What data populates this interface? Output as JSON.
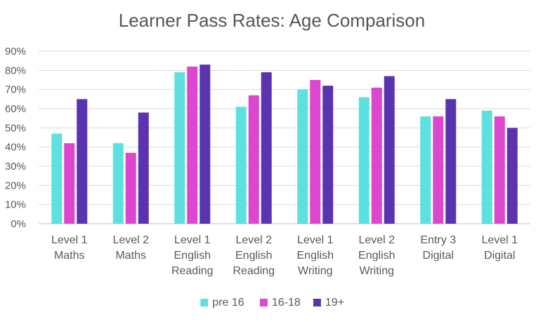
{
  "chart_data": {
    "type": "bar",
    "title": "Learner Pass Rates: Age Comparison",
    "xlabel": "",
    "ylabel": "",
    "ylim": [
      0,
      90
    ],
    "yticks": [
      "0%",
      "10%",
      "20%",
      "30%",
      "40%",
      "50%",
      "60%",
      "70%",
      "80%",
      "90%"
    ],
    "grid": true,
    "legend_position": "bottom",
    "categories": [
      [
        "Level 1",
        "Maths"
      ],
      [
        "Level 2",
        "Maths"
      ],
      [
        "Level 1",
        "English",
        "Reading"
      ],
      [
        "Level 2",
        "English",
        "Reading"
      ],
      [
        "Level 1",
        "English",
        "Writing"
      ],
      [
        "Level 2",
        "English",
        "Writing"
      ],
      [
        "Entry 3",
        "Digital"
      ],
      [
        "Level 1",
        "Digital"
      ]
    ],
    "series": [
      {
        "name": "pre 16",
        "color": "#5ce1e0",
        "values": [
          47,
          42,
          79,
          61,
          70,
          66,
          56,
          59
        ]
      },
      {
        "name": "16-18",
        "color": "#dd47d0",
        "values": [
          42,
          37,
          82,
          67,
          75,
          71,
          56,
          56
        ]
      },
      {
        "name": "19+",
        "color": "#5a34b0",
        "values": [
          65,
          58,
          83,
          79,
          72,
          77,
          65,
          50
        ]
      }
    ]
  }
}
